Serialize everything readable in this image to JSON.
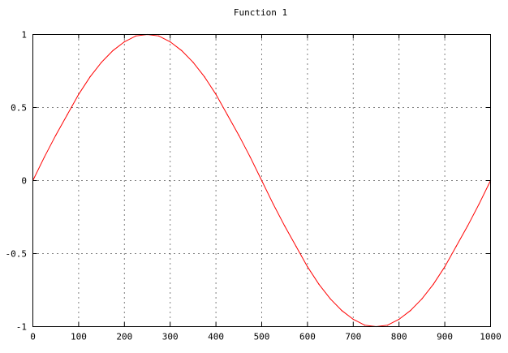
{
  "chart_data": {
    "type": "line",
    "title": "Function 1",
    "xlabel": "",
    "ylabel": "",
    "xlim": [
      0,
      1000
    ],
    "ylim": [
      -1,
      1
    ],
    "x_ticks": [
      "0",
      "100",
      "200",
      "300",
      "400",
      "500",
      "600",
      "700",
      "800",
      "900",
      "1000"
    ],
    "y_ticks": [
      "1",
      "0.5",
      "0",
      "-0.5",
      "-1"
    ],
    "grid": true,
    "legend": "none",
    "series": [
      {
        "color": "#ff0000",
        "x": [
          0,
          25,
          50,
          75,
          100,
          125,
          150,
          175,
          200,
          225,
          250,
          275,
          300,
          325,
          350,
          375,
          400,
          425,
          450,
          475,
          500,
          525,
          550,
          575,
          600,
          625,
          650,
          675,
          700,
          725,
          750,
          775,
          800,
          825,
          850,
          875,
          900,
          925,
          950,
          975,
          1000
        ],
        "y": [
          0,
          0.16,
          0.31,
          0.45,
          0.59,
          0.71,
          0.81,
          0.89,
          0.95,
          0.99,
          1,
          0.99,
          0.95,
          0.89,
          0.81,
          0.71,
          0.59,
          0.45,
          0.31,
          0.16,
          0,
          -0.16,
          -0.31,
          -0.45,
          -0.59,
          -0.71,
          -0.81,
          -0.89,
          -0.95,
          -0.99,
          -1,
          -0.99,
          -0.95,
          -0.89,
          -0.81,
          -0.71,
          -0.59,
          -0.45,
          -0.31,
          -0.16,
          0
        ]
      }
    ]
  }
}
